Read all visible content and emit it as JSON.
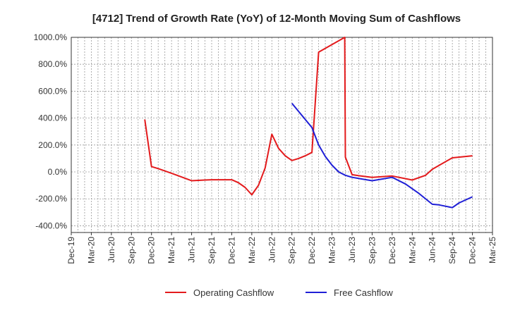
{
  "chart_data": {
    "type": "line",
    "title": "[4712]  Trend of Growth Rate (YoY) of 12-Month Moving Sum of Cashflows",
    "xlabel": "",
    "ylabel": "",
    "x_tick_labels": [
      "Dec-19",
      "Mar-20",
      "Jun-20",
      "Sep-20",
      "Dec-20",
      "Mar-21",
      "Jun-21",
      "Sep-21",
      "Dec-21",
      "Mar-22",
      "Jun-22",
      "Sep-22",
      "Dec-22",
      "Mar-23",
      "Jun-23",
      "Sep-23",
      "Dec-23",
      "Mar-24",
      "Jun-24",
      "Sep-24",
      "Dec-24",
      "Mar-25"
    ],
    "y_tick_labels": [
      "1000.0%",
      "800.0%",
      "600.0%",
      "400.0%",
      "200.0%",
      "0.0%",
      "-200.0%",
      "-400.0%"
    ],
    "y_ticks": [
      1000,
      800,
      600,
      400,
      200,
      0,
      -200,
      -400
    ],
    "ylim": [
      -450,
      1000
    ],
    "x_range_months": [
      0,
      63
    ],
    "grid": true,
    "legend_position": "bottom-center",
    "series": [
      {
        "name": "Operating Cashflow",
        "color": "#e31a1c",
        "points": [
          {
            "month": 11,
            "value": 390
          },
          {
            "month": 12,
            "value": 40
          },
          {
            "month": 13,
            "value": 25
          },
          {
            "month": 15,
            "value": -10
          },
          {
            "month": 18,
            "value": -65
          },
          {
            "month": 20,
            "value": -60
          },
          {
            "month": 21,
            "value": -58
          },
          {
            "month": 24,
            "value": -58
          },
          {
            "month": 25,
            "value": -80
          },
          {
            "month": 26,
            "value": -115
          },
          {
            "month": 27,
            "value": -170
          },
          {
            "month": 28,
            "value": -100
          },
          {
            "month": 29,
            "value": 30
          },
          {
            "month": 30,
            "value": 280
          },
          {
            "month": 31,
            "value": 175
          },
          {
            "month": 32,
            "value": 120
          },
          {
            "month": 33,
            "value": 85
          },
          {
            "month": 34,
            "value": 100
          },
          {
            "month": 35,
            "value": 120
          },
          {
            "month": 36,
            "value": 145
          },
          {
            "month": 37,
            "value": 890
          },
          {
            "month": 40.9,
            "value": 1000
          },
          {
            "month": 41,
            "value": 110
          },
          {
            "month": 42,
            "value": -20
          },
          {
            "month": 43,
            "value": -28
          },
          {
            "month": 45,
            "value": -40
          },
          {
            "month": 48,
            "value": -30
          },
          {
            "month": 51,
            "value": -60
          },
          {
            "month": 53,
            "value": -25
          },
          {
            "month": 54,
            "value": 20
          },
          {
            "month": 57,
            "value": 105
          },
          {
            "month": 60,
            "value": 120
          }
        ]
      },
      {
        "name": "Free Cashflow",
        "color": "#1f1fd6",
        "points": [
          {
            "month": 33,
            "value": 510
          },
          {
            "month": 36,
            "value": 330
          },
          {
            "month": 37,
            "value": 200
          },
          {
            "month": 38,
            "value": 115
          },
          {
            "month": 39,
            "value": 50
          },
          {
            "month": 40,
            "value": 0
          },
          {
            "month": 41,
            "value": -25
          },
          {
            "month": 42,
            "value": -40
          },
          {
            "month": 45,
            "value": -65
          },
          {
            "month": 48,
            "value": -40
          },
          {
            "month": 50,
            "value": -90
          },
          {
            "month": 52,
            "value": -160
          },
          {
            "month": 54,
            "value": -240
          },
          {
            "month": 55,
            "value": -245
          },
          {
            "month": 57,
            "value": -265
          },
          {
            "month": 58,
            "value": -230
          },
          {
            "month": 60,
            "value": -185
          }
        ]
      }
    ]
  }
}
